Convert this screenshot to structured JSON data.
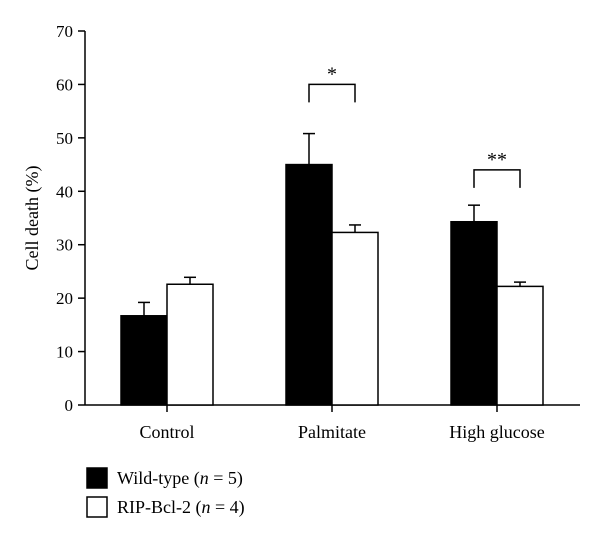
{
  "chart_data": {
    "type": "bar",
    "ylabel": "Cell death (%)",
    "xlabel": "",
    "ylim": [
      0,
      70
    ],
    "yticks": [
      0,
      10,
      20,
      30,
      40,
      50,
      60,
      70
    ],
    "categories": [
      "Control",
      "Palmitate",
      "High glucose"
    ],
    "series": [
      {
        "name": "Wild-type",
        "name_n": "n",
        "name_n_value": "5",
        "color": "#000000",
        "values": [
          16.7,
          45.0,
          34.3
        ],
        "errors": [
          2.5,
          5.8,
          3.1
        ]
      },
      {
        "name": "RIP-Bcl-2",
        "name_n": "n",
        "name_n_value": "4",
        "color": "#ffffff",
        "values": [
          22.6,
          32.3,
          22.2
        ],
        "errors": [
          1.3,
          1.4,
          0.8
        ]
      }
    ],
    "significance": [
      {
        "category": "Palmitate",
        "label": "*",
        "level": 60
      },
      {
        "category": "High glucose",
        "label": "**",
        "level": 44
      }
    ],
    "legend": "bottom-left"
  }
}
